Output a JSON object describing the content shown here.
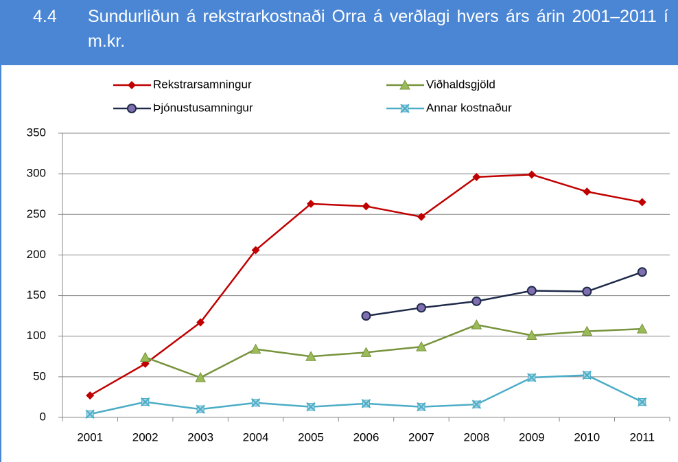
{
  "chart_data": {
    "type": "line",
    "number": "4.4",
    "title": "Sundurliðun á rekstrarkostnaði Orra á verðlagi hvers árs árin 2001–2011 í m.kr.",
    "categories": [
      "2001",
      "2002",
      "2003",
      "2004",
      "2005",
      "2006",
      "2007",
      "2008",
      "2009",
      "2010",
      "2011"
    ],
    "series": [
      {
        "name": "Rekstrarsamningur",
        "color": "#c00000",
        "marker": "diamond",
        "values": [
          27,
          66,
          117,
          206,
          263,
          260,
          247,
          296,
          299,
          278,
          265
        ]
      },
      {
        "name": "Viðhaldsgjöld",
        "color": "#77933c",
        "marker": "triangle",
        "values": [
          null,
          74,
          49,
          84,
          75,
          80,
          87,
          114,
          101,
          106,
          109
        ]
      },
      {
        "name": "Þjónustusamningur",
        "color": "#1f2a4a",
        "marker": "circle",
        "values": [
          null,
          null,
          null,
          null,
          null,
          125,
          135,
          143,
          156,
          155,
          179
        ]
      },
      {
        "name": "Annar kostnaður",
        "color": "#4bacc6",
        "marker": "xsquare",
        "values": [
          4,
          19,
          10,
          18,
          13,
          17,
          13,
          16,
          49,
          52,
          19
        ]
      }
    ],
    "ylim": [
      0,
      350
    ],
    "yticks": [
      0,
      50,
      100,
      150,
      200,
      250,
      300,
      350
    ],
    "grid": true,
    "legend": "top"
  }
}
